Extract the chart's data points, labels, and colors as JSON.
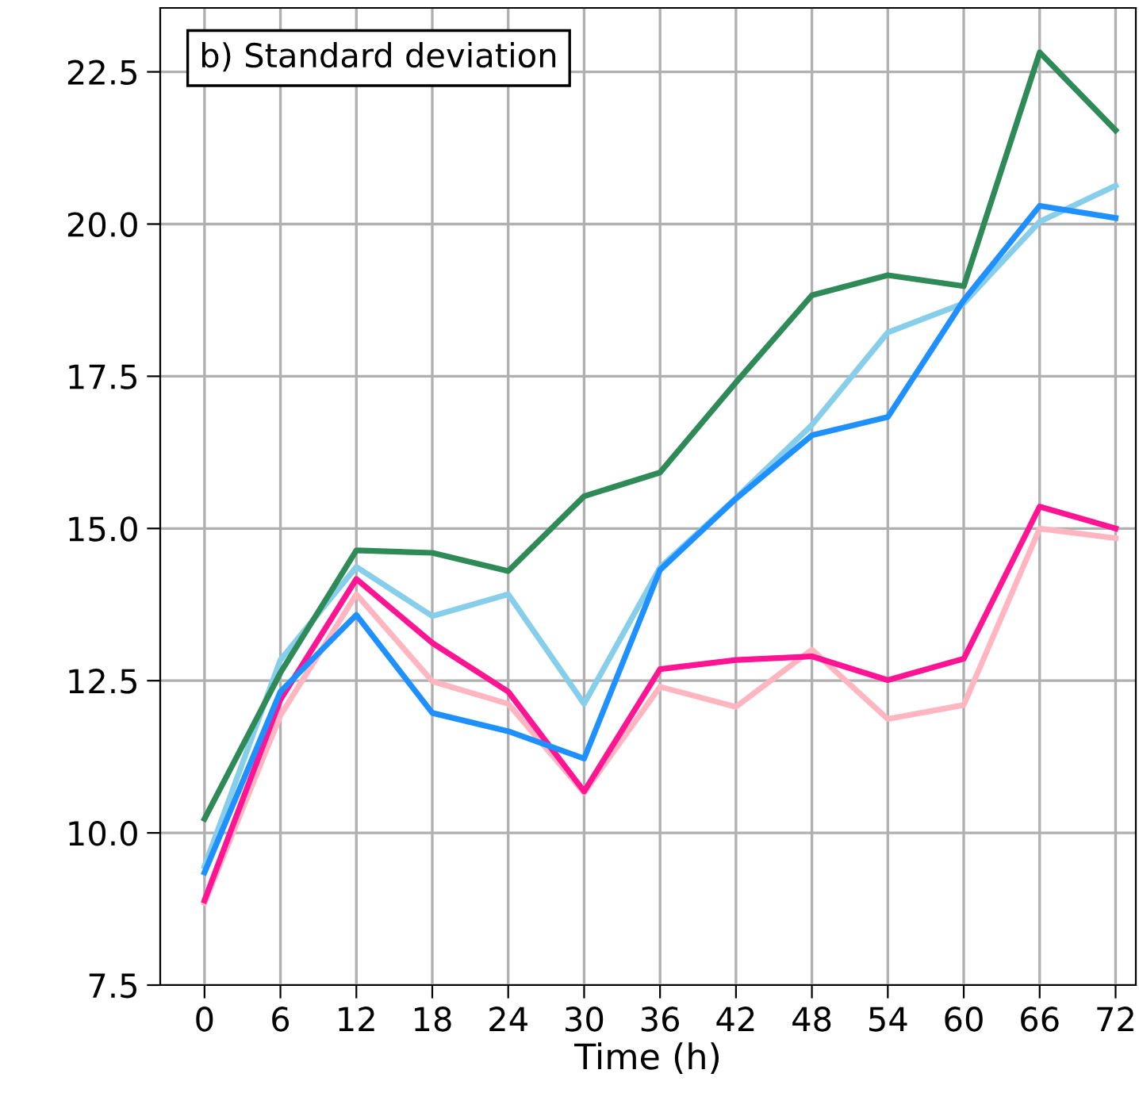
{
  "chart_data": {
    "type": "line",
    "title": "b) Standard deviation",
    "xlabel": "Time (h)",
    "x": [
      0,
      6,
      12,
      18,
      24,
      30,
      36,
      42,
      48,
      54,
      60,
      66,
      72
    ],
    "xlim": [
      -3.5,
      73.6
    ],
    "xticks": [
      0,
      6,
      12,
      18,
      24,
      30,
      36,
      42,
      48,
      54,
      60,
      66,
      72
    ],
    "ylim": [
      7.5,
      23.55
    ],
    "yticks": [
      {
        "value": 7.5,
        "label": "7.5"
      },
      {
        "value": 10,
        "label": "10.0"
      },
      {
        "value": 12.5,
        "label": "12.5"
      },
      {
        "value": 15,
        "label": "15.0"
      },
      {
        "value": 17.5,
        "label": "17.5"
      },
      {
        "value": 20,
        "label": "20.0"
      },
      {
        "value": 22.5,
        "label": "22.5"
      }
    ],
    "grid": true,
    "line_style": "solid",
    "series": [
      {
        "color": "#ffb6c1",
        "values": [
          8.85,
          11.93,
          13.92,
          12.49,
          12.12,
          10.66,
          12.4,
          12.07,
          13.01,
          11.87,
          12.1,
          15.0,
          14.84
        ]
      },
      {
        "color": "#ff1493",
        "values": [
          8.89,
          12.19,
          14.17,
          13.12,
          12.32,
          10.68,
          12.69,
          12.84,
          12.9,
          12.51,
          12.86,
          15.36,
          15.0
        ]
      },
      {
        "color": "#87ceeb",
        "values": [
          9.45,
          12.84,
          14.37,
          13.56,
          13.92,
          12.12,
          14.36,
          15.5,
          16.7,
          18.22,
          18.7,
          20.04,
          20.63
        ]
      },
      {
        "color": "#1e90ff",
        "values": [
          9.35,
          12.32,
          13.58,
          11.97,
          11.67,
          11.22,
          14.32,
          15.49,
          16.53,
          16.83,
          18.75,
          20.3,
          20.1
        ]
      },
      {
        "color": "#2e8b57",
        "values": [
          10.23,
          12.63,
          14.64,
          14.6,
          14.3,
          15.53,
          15.92,
          17.4,
          18.83,
          19.16,
          18.98,
          22.82,
          21.54
        ]
      }
    ]
  }
}
